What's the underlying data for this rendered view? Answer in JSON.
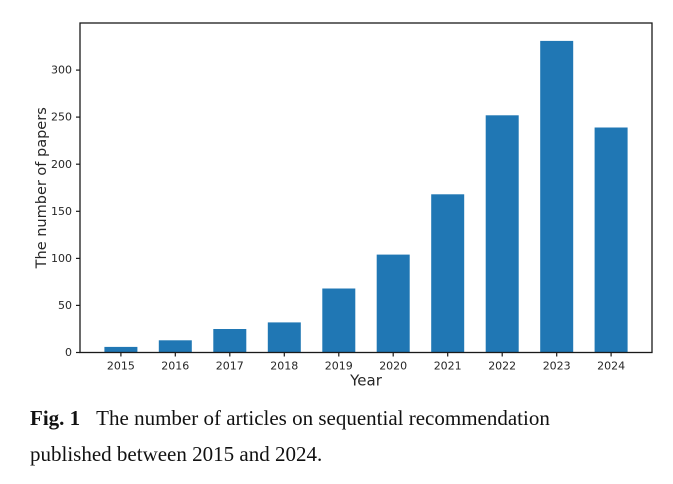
{
  "figure": {
    "caption": {
      "label": "Fig. 1",
      "line1": "The number of articles on sequential recommendation",
      "line2": "published between 2015 and 2024."
    }
  },
  "chart_data": {
    "type": "bar",
    "title": "",
    "xlabel": "Year",
    "ylabel": "The number of papers",
    "categories": [
      "2015",
      "2016",
      "2017",
      "2018",
      "2019",
      "2020",
      "2021",
      "2022",
      "2023",
      "2024"
    ],
    "values": [
      6,
      13,
      25,
      32,
      68,
      104,
      168,
      252,
      331,
      239
    ],
    "yticks": [
      0,
      50,
      100,
      150,
      200,
      250,
      300
    ],
    "ylim": [
      0,
      350
    ],
    "grid": false,
    "legend": "none",
    "bar_color": "#2077b4",
    "axis_color": "#1a1a1a",
    "tick_label_color": "#262626"
  }
}
